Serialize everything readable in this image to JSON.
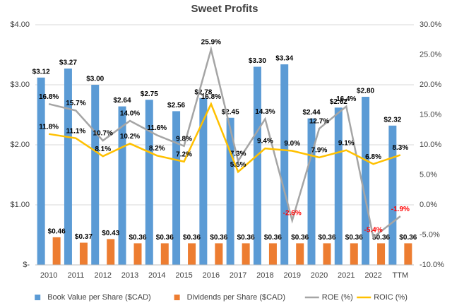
{
  "chart_data": {
    "type": "bar-line",
    "title": "Sweet Profits",
    "categories": [
      "2010",
      "2011",
      "2012",
      "2013",
      "2014",
      "2015",
      "2016",
      "2017",
      "2018",
      "2019",
      "2020",
      "2021",
      "2022",
      "TTM"
    ],
    "ylim": [
      0,
      4
    ],
    "yticks": [
      {
        "value": 0,
        "label": "$-"
      },
      {
        "value": 1,
        "label": "$1.00"
      },
      {
        "value": 2,
        "label": "$2.00"
      },
      {
        "value": 3,
        "label": "$3.00"
      },
      {
        "value": 4,
        "label": "$4.00"
      }
    ],
    "y2lim": [
      -10,
      30
    ],
    "y2ticks": [
      {
        "value": -10,
        "label": "-10.0%"
      },
      {
        "value": -5,
        "label": "-5.0%"
      },
      {
        "value": 0,
        "label": "0.0%"
      },
      {
        "value": 5,
        "label": "5.0%"
      },
      {
        "value": 10,
        "label": "10.0%"
      },
      {
        "value": 15,
        "label": "15.0%"
      },
      {
        "value": 20,
        "label": "20.0%"
      },
      {
        "value": 25,
        "label": "25.0%"
      },
      {
        "value": 30,
        "label": "30.0%"
      }
    ],
    "grid": true,
    "legend": "bottom",
    "series": [
      {
        "name": "Book Value per Share ($CAD)",
        "type": "bar",
        "color": "#5b9bd5",
        "values": [
          3.12,
          3.27,
          3.0,
          2.64,
          2.75,
          2.56,
          2.78,
          2.45,
          3.3,
          3.34,
          2.44,
          2.62,
          2.8,
          2.32
        ],
        "value_labels": [
          "$3.12",
          "$3.27",
          "$3.00",
          "$2.64",
          "$2.75",
          "$2.56",
          "$2.78",
          "$2.45",
          "$3.30",
          "$3.34",
          "$2.44",
          "$2.62",
          "$2.80",
          "$2.32"
        ]
      },
      {
        "name": "Dividends per Share ($CAD)",
        "type": "bar",
        "color": "#ed7d31",
        "values": [
          0.46,
          0.37,
          0.43,
          0.36,
          0.36,
          0.36,
          0.36,
          0.36,
          0.36,
          0.36,
          0.36,
          0.36,
          0.36,
          0.36
        ],
        "value_labels": [
          "$0.46",
          "$0.37",
          "$0.43",
          "$0.36",
          "$0.36",
          "$0.36",
          "$0.36",
          "$0.36",
          "$0.36",
          "$0.36",
          "$0.36",
          "$0.36",
          "$0.36",
          "$0.36"
        ]
      },
      {
        "name": "ROE (%)",
        "type": "line",
        "axis": "y2",
        "color": "#a5a5a5",
        "values": [
          16.8,
          15.7,
          10.7,
          14.0,
          11.6,
          9.8,
          25.9,
          7.3,
          14.3,
          -2.6,
          12.7,
          16.4,
          -5.4,
          -1.9
        ],
        "value_labels": [
          "16.8%",
          "15.7%",
          "10.7%",
          "14.0%",
          "11.6%",
          "9.8%",
          "25.9%",
          "7.3%",
          "14.3%",
          "-2.6%",
          "12.7%",
          "16.4%",
          "-5.4%",
          "-1.9%"
        ]
      },
      {
        "name": "ROIC (%)",
        "type": "line",
        "axis": "y2",
        "color": "#ffc000",
        "values": [
          11.8,
          11.1,
          8.1,
          10.2,
          8.2,
          7.2,
          16.8,
          5.5,
          9.4,
          9.0,
          7.9,
          9.1,
          6.8,
          8.3
        ],
        "value_labels": [
          "11.8%",
          "11.1%",
          "8.1%",
          "10.2%",
          "8.2%",
          "7.2%",
          "16.8%",
          "5.5%",
          "9.4%",
          "9.0%",
          "7.9%",
          "9.1%",
          "6.8%",
          "8.3%"
        ]
      }
    ]
  }
}
